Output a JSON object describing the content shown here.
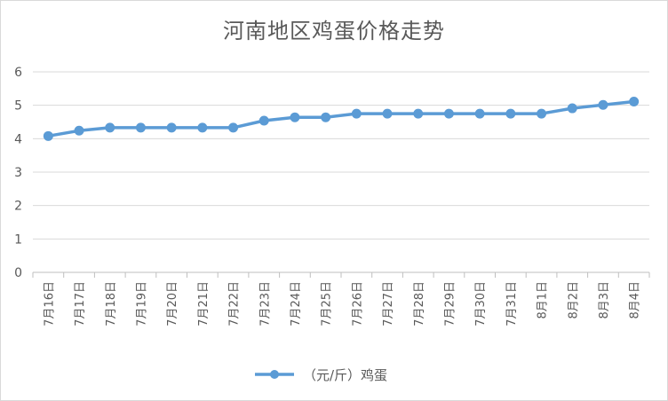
{
  "chart_data": {
    "type": "line",
    "title": "河南地区鸡蛋价格走势",
    "xlabel": "",
    "ylabel": "",
    "categories": [
      "7月16日",
      "7月17日",
      "7月18日",
      "7月19日",
      "7月20日",
      "7月21日",
      "7月22日",
      "7月23日",
      "7月24日",
      "7月25日",
      "7月26日",
      "7月27日",
      "7月28日",
      "7月29日",
      "7月30日",
      "7月31日",
      "8月1日",
      "8月2日",
      "8月3日",
      "8月4日"
    ],
    "series": [
      {
        "name": "（元/斤）鸡蛋",
        "values": [
          4.08,
          4.24,
          4.33,
          4.33,
          4.33,
          4.33,
          4.33,
          4.54,
          4.64,
          4.64,
          4.75,
          4.75,
          4.75,
          4.75,
          4.75,
          4.75,
          4.75,
          4.91,
          5.01,
          5.11
        ],
        "color": "#5b9bd5"
      }
    ],
    "ylim": [
      0,
      6
    ],
    "yticks": [
      "0",
      "1",
      "2",
      "3",
      "4",
      "5",
      "6"
    ],
    "grid": true,
    "legend_position": "bottom"
  }
}
